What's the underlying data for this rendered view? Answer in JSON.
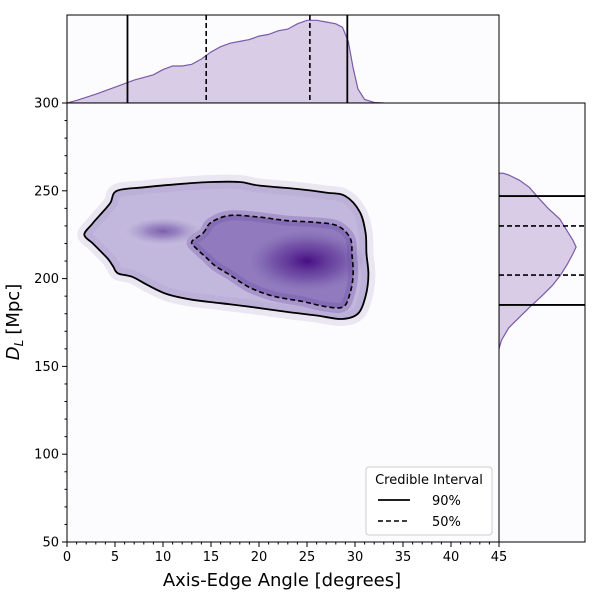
{
  "chart_data": {
    "type": "heatmap",
    "title": "",
    "xlabel": "Axis-Edge Angle [degrees]",
    "ylabel_main": "D",
    "ylabel_sub": "L",
    "ylabel_unit": "[Mpc]",
    "xlim": [
      0,
      45
    ],
    "ylim": [
      50,
      350
    ],
    "x_ticks": [
      0,
      5,
      10,
      15,
      20,
      25,
      30,
      35,
      40,
      45
    ],
    "y_ticks": [
      50,
      100,
      150,
      200,
      250,
      300
    ],
    "colormap": "purples",
    "accent_color": "#7a5aa8",
    "fill_color": "#d9cce6",
    "density_peak": {
      "x": 25,
      "y": 210
    },
    "credible_interval_90": [
      [
        5.2,
        250
      ],
      [
        8,
        252
      ],
      [
        12,
        254
      ],
      [
        15,
        255
      ],
      [
        18,
        255
      ],
      [
        20,
        253
      ],
      [
        24,
        251
      ],
      [
        27,
        249
      ],
      [
        29,
        247
      ],
      [
        30.5,
        238
      ],
      [
        31.1,
        226
      ],
      [
        31.2,
        214
      ],
      [
        31.4,
        202
      ],
      [
        31.1,
        190
      ],
      [
        30.3,
        180
      ],
      [
        28.6,
        177
      ],
      [
        26,
        179
      ],
      [
        23,
        181
      ],
      [
        19,
        184
      ],
      [
        16,
        186
      ],
      [
        13,
        188
      ],
      [
        10.5,
        191
      ],
      [
        8.5,
        196
      ],
      [
        6.8,
        201
      ],
      [
        5.3,
        203
      ],
      [
        4.8,
        207
      ],
      [
        4.3,
        211
      ],
      [
        3.6,
        215
      ],
      [
        2.7,
        220
      ],
      [
        1.8,
        225
      ],
      [
        2.6,
        231
      ],
      [
        3.4,
        236
      ],
      [
        4.5,
        243
      ]
    ],
    "credible_interval_50": [
      [
        14.2,
        226
      ],
      [
        15,
        232
      ],
      [
        17,
        236
      ],
      [
        20,
        235
      ],
      [
        23,
        233
      ],
      [
        26,
        232
      ],
      [
        28.2,
        230
      ],
      [
        29.5,
        223
      ],
      [
        29.7,
        213
      ],
      [
        29.8,
        202
      ],
      [
        29.5,
        192
      ],
      [
        28.8,
        184
      ],
      [
        27,
        184
      ],
      [
        24.5,
        187
      ],
      [
        21.5,
        190
      ],
      [
        19,
        195
      ],
      [
        17,
        202
      ],
      [
        15.5,
        207
      ],
      [
        14.5,
        212
      ],
      [
        13.5,
        217
      ],
      [
        13,
        221
      ]
    ],
    "marginal_x": {
      "points": [
        [
          0,
          300
        ],
        [
          1,
          301.5
        ],
        [
          3,
          305
        ],
        [
          5,
          309
        ],
        [
          7,
          313
        ],
        [
          9,
          316
        ],
        [
          10,
          319
        ],
        [
          11,
          321
        ],
        [
          12,
          321
        ],
        [
          13,
          322
        ],
        [
          14,
          325
        ],
        [
          15,
          329
        ],
        [
          16,
          332
        ],
        [
          17,
          334
        ],
        [
          18,
          335
        ],
        [
          19,
          336
        ],
        [
          20,
          338
        ],
        [
          21,
          339
        ],
        [
          22,
          341
        ],
        [
          23,
          342
        ],
        [
          24,
          345
        ],
        [
          25,
          347
        ],
        [
          26,
          347
        ],
        [
          27,
          346
        ],
        [
          28,
          345
        ],
        [
          28.7,
          343
        ],
        [
          29.3,
          335
        ],
        [
          29.8,
          320
        ],
        [
          30.3,
          308
        ],
        [
          31,
          302
        ],
        [
          32,
          300.3
        ],
        [
          33,
          300
        ]
      ],
      "interval_90": [
        6.3,
        29.2
      ],
      "interval_50": [
        14.5,
        25.3
      ]
    },
    "marginal_y": {
      "points": [
        [
          160,
          0
        ],
        [
          165,
          0.03
        ],
        [
          172,
          0.12
        ],
        [
          178,
          0.25
        ],
        [
          184,
          0.38
        ],
        [
          190,
          0.52
        ],
        [
          196,
          0.65
        ],
        [
          202,
          0.75
        ],
        [
          208,
          0.83
        ],
        [
          214,
          0.9
        ],
        [
          218,
          0.94
        ],
        [
          222,
          0.9
        ],
        [
          228,
          0.82
        ],
        [
          234,
          0.74
        ],
        [
          240,
          0.6
        ],
        [
          246,
          0.48
        ],
        [
          252,
          0.37
        ],
        [
          256,
          0.25
        ],
        [
          259,
          0.12
        ],
        [
          260,
          0.05
        ]
      ],
      "interval_90": [
        185,
        247
      ],
      "interval_50": [
        202,
        230
      ]
    },
    "legend": {
      "title": "Credible Interval",
      "placement": "lower-right",
      "entries": [
        {
          "label": "90%",
          "style": "solid"
        },
        {
          "label": "50%",
          "style": "dashed"
        }
      ]
    }
  }
}
